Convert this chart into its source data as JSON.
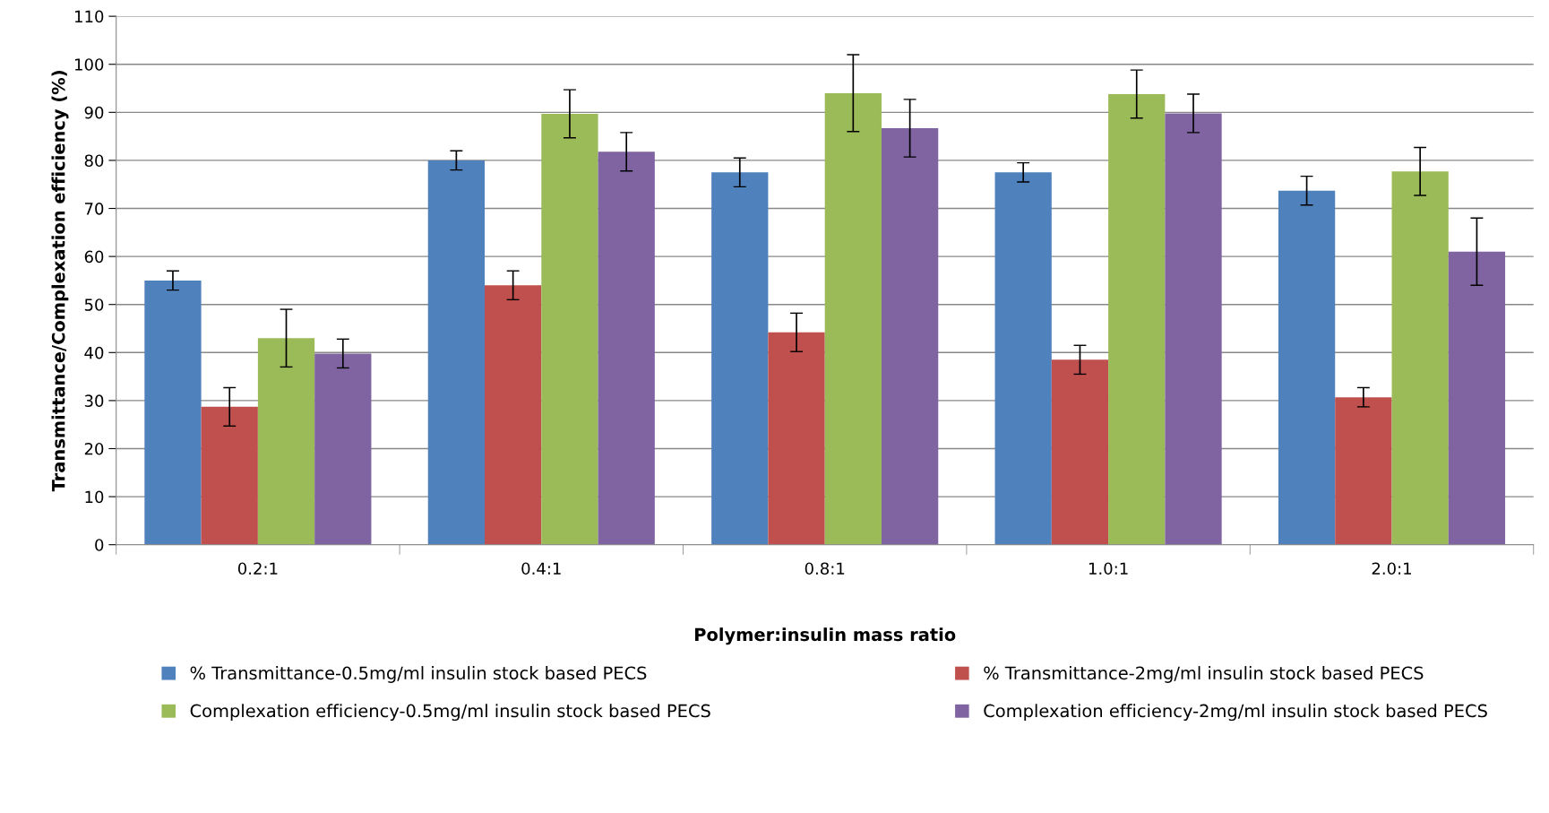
{
  "chart_data": {
    "type": "bar",
    "xlabel": "Polymer:insulin mass ratio",
    "ylabel": "Transmittance/Complexation efficiency (%)",
    "categories": [
      "0.2:1",
      "0.4:1",
      "0.8:1",
      "1.0:1",
      "2.0:1"
    ],
    "series": [
      {
        "name": "% Transmittance-0.5mg/ml insulin stock based PECS",
        "color": "#4f81bd",
        "values": [
          55,
          80,
          77.5,
          77.5,
          73.7
        ],
        "errors": [
          2,
          2,
          3,
          2,
          3
        ]
      },
      {
        "name": "% Transmittance-2mg/ml insulin stock based PECS",
        "color": "#c0504d",
        "values": [
          28.7,
          54,
          44.2,
          38.5,
          30.7
        ],
        "errors": [
          4,
          3,
          4,
          3,
          2
        ]
      },
      {
        "name": "Complexation efficiency-0.5mg/ml insulin stock based PECS",
        "color": "#9bbb59",
        "values": [
          43,
          89.7,
          94,
          93.8,
          77.7
        ],
        "errors": [
          6,
          5,
          8,
          5,
          5
        ]
      },
      {
        "name": "Complexation efficiency-2mg/ml insulin stock based PECS",
        "color": "#8064a2",
        "values": [
          39.8,
          81.8,
          86.7,
          89.8,
          61
        ],
        "errors": [
          3,
          4,
          6,
          4,
          7
        ]
      }
    ],
    "ylim": [
      0,
      110
    ],
    "yticks": [
      0,
      10,
      20,
      30,
      40,
      50,
      60,
      70,
      80,
      90,
      100,
      110
    ],
    "grid": "y",
    "legend": "bottom"
  }
}
